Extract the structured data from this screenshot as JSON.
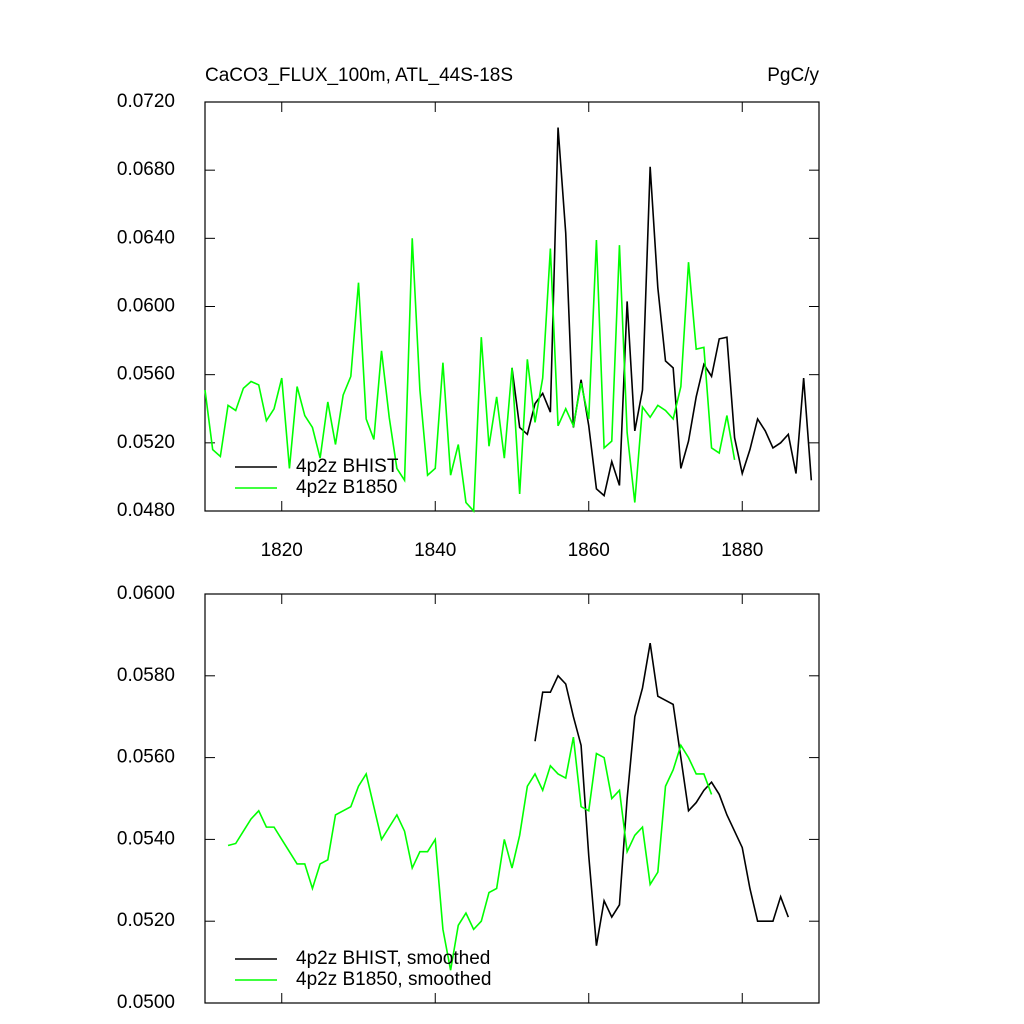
{
  "chart_data": [
    {
      "type": "line",
      "title": "CaCO3_FLUX_100m, ATL_44S-18S",
      "units": "PgC/y",
      "xlim": [
        1810,
        1890
      ],
      "xticks": [
        1820,
        1840,
        1860,
        1880
      ],
      "xtick_labels": true,
      "ylim": [
        0.048,
        0.072
      ],
      "yticks": [
        {
          "value": 0.048,
          "label": "0.0480"
        },
        {
          "value": 0.052,
          "label": "0.0520"
        },
        {
          "value": 0.056,
          "label": "0.0560"
        },
        {
          "value": 0.06,
          "label": "0.0600"
        },
        {
          "value": 0.064,
          "label": "0.0640"
        },
        {
          "value": 0.068,
          "label": "0.0680"
        },
        {
          "value": 0.072,
          "label": "0.0720"
        }
      ],
      "legend": "lower-left",
      "series": [
        {
          "name": "4p2z BHIST",
          "color": "#000000",
          "x": [
            1850,
            1851,
            1852,
            1853,
            1854,
            1855,
            1856,
            1857,
            1858,
            1859,
            1860,
            1861,
            1862,
            1863,
            1864,
            1865,
            1866,
            1867,
            1868,
            1869,
            1870,
            1871,
            1872,
            1873,
            1874,
            1875,
            1876,
            1877,
            1878,
            1879,
            1880,
            1881,
            1882,
            1883,
            1884,
            1885,
            1886,
            1887,
            1888,
            1889
          ],
          "values": [
            0.0564,
            0.0529,
            0.0525,
            0.0543,
            0.0549,
            0.0538,
            0.0705,
            0.0643,
            0.0529,
            0.0557,
            0.053,
            0.0493,
            0.0489,
            0.0509,
            0.0495,
            0.0603,
            0.0527,
            0.0551,
            0.0682,
            0.0611,
            0.0568,
            0.0564,
            0.0505,
            0.0521,
            0.0547,
            0.0566,
            0.0559,
            0.0581,
            0.0582,
            0.0523,
            0.0502,
            0.0516,
            0.0534,
            0.0527,
            0.0517,
            0.052,
            0.0525,
            0.0502,
            0.0558,
            0.0498
          ]
        },
        {
          "name": "4p2z B1850",
          "color": "#00ff00",
          "x": [
            1810,
            1811,
            1812,
            1813,
            1814,
            1815,
            1816,
            1817,
            1818,
            1819,
            1820,
            1821,
            1822,
            1823,
            1824,
            1825,
            1826,
            1827,
            1828,
            1829,
            1830,
            1831,
            1832,
            1833,
            1834,
            1835,
            1836,
            1837,
            1838,
            1839,
            1840,
            1841,
            1842,
            1843,
            1844,
            1845,
            1846,
            1847,
            1848,
            1849,
            1850,
            1851,
            1852,
            1853,
            1854,
            1855,
            1856,
            1857,
            1858,
            1859,
            1860,
            1861,
            1862,
            1863,
            1864,
            1865,
            1866,
            1867,
            1868,
            1869,
            1870,
            1871,
            1872,
            1873,
            1874,
            1875,
            1876,
            1877,
            1878,
            1879
          ],
          "values": [
            0.0551,
            0.0516,
            0.0512,
            0.0542,
            0.0539,
            0.0552,
            0.0556,
            0.0554,
            0.0533,
            0.054,
            0.0558,
            0.0505,
            0.0553,
            0.0536,
            0.0529,
            0.0511,
            0.0544,
            0.0519,
            0.0548,
            0.0559,
            0.0614,
            0.0534,
            0.0522,
            0.0574,
            0.0535,
            0.0505,
            0.0498,
            0.064,
            0.0551,
            0.0501,
            0.0505,
            0.0567,
            0.0501,
            0.0519,
            0.0485,
            0.048,
            0.0582,
            0.0518,
            0.0547,
            0.0511,
            0.0564,
            0.049,
            0.0569,
            0.0532,
            0.0558,
            0.0634,
            0.053,
            0.054,
            0.053,
            0.0555,
            0.0534,
            0.0639,
            0.0517,
            0.0521,
            0.0636,
            0.0526,
            0.0485,
            0.0541,
            0.0535,
            0.0542,
            0.0539,
            0.0534,
            0.0553,
            0.0626,
            0.0575,
            0.0576,
            0.0517,
            0.0514,
            0.0536,
            0.051
          ]
        }
      ]
    },
    {
      "type": "line",
      "xlim": [
        1810,
        1890
      ],
      "xticks": [
        1820,
        1840,
        1860,
        1880
      ],
      "xtick_labels": false,
      "ylim": [
        0.05,
        0.06
      ],
      "yticks": [
        {
          "value": 0.05,
          "label": "0.0500"
        },
        {
          "value": 0.052,
          "label": "0.0520"
        },
        {
          "value": 0.054,
          "label": "0.0540"
        },
        {
          "value": 0.056,
          "label": "0.0560"
        },
        {
          "value": 0.058,
          "label": "0.0580"
        },
        {
          "value": 0.06,
          "label": "0.0600"
        }
      ],
      "legend": "lower-left",
      "series": [
        {
          "name": "4p2z BHIST, smoothed",
          "color": "#000000",
          "x": [
            1853,
            1854,
            1855,
            1856,
            1857,
            1858,
            1859,
            1860,
            1861,
            1862,
            1863,
            1864,
            1865,
            1866,
            1867,
            1868,
            1869,
            1870,
            1871,
            1872,
            1873,
            1874,
            1875,
            1876,
            1877,
            1878,
            1879,
            1880,
            1881,
            1882,
            1883,
            1884,
            1885,
            1886
          ],
          "values": [
            0.0564,
            0.0576,
            0.0576,
            0.058,
            0.0578,
            0.057,
            0.0563,
            0.0536,
            0.0514,
            0.0525,
            0.0521,
            0.0524,
            0.055,
            0.057,
            0.0577,
            0.0588,
            0.0575,
            0.0574,
            0.0573,
            0.056,
            0.0547,
            0.0549,
            0.0552,
            0.0554,
            0.0551,
            0.0546,
            0.0542,
            0.0538,
            0.0528,
            0.052,
            0.052,
            0.052,
            0.0526,
            0.0521
          ]
        },
        {
          "name": "4p2z B1850, smoothed",
          "color": "#00ff00",
          "x": [
            1813,
            1814,
            1815,
            1816,
            1817,
            1818,
            1819,
            1820,
            1821,
            1822,
            1823,
            1824,
            1825,
            1826,
            1827,
            1828,
            1829,
            1830,
            1831,
            1832,
            1833,
            1834,
            1835,
            1836,
            1837,
            1838,
            1839,
            1840,
            1841,
            1842,
            1843,
            1844,
            1845,
            1846,
            1847,
            1848,
            1849,
            1850,
            1851,
            1852,
            1853,
            1854,
            1855,
            1856,
            1857,
            1858,
            1859,
            1860,
            1861,
            1862,
            1863,
            1864,
            1865,
            1866,
            1867,
            1868,
            1869,
            1870,
            1871,
            1872,
            1873,
            1874,
            1875,
            1876
          ],
          "values": [
            0.05385,
            0.0539,
            0.0542,
            0.0545,
            0.0547,
            0.0543,
            0.0543,
            0.054,
            0.0537,
            0.0534,
            0.0534,
            0.0528,
            0.0534,
            0.0535,
            0.0546,
            0.0547,
            0.0548,
            0.0553,
            0.0556,
            0.0548,
            0.054,
            0.0543,
            0.0546,
            0.0542,
            0.0533,
            0.0537,
            0.0537,
            0.054,
            0.0518,
            0.0508,
            0.0519,
            0.0522,
            0.0518,
            0.052,
            0.0527,
            0.0528,
            0.054,
            0.0533,
            0.0541,
            0.0553,
            0.0556,
            0.0552,
            0.0558,
            0.0556,
            0.0555,
            0.0565,
            0.0548,
            0.0547,
            0.0561,
            0.056,
            0.055,
            0.0552,
            0.0537,
            0.0541,
            0.0543,
            0.0529,
            0.0532,
            0.0553,
            0.0557,
            0.0563,
            0.056,
            0.0556,
            0.0556,
            0.0551
          ]
        }
      ]
    }
  ]
}
